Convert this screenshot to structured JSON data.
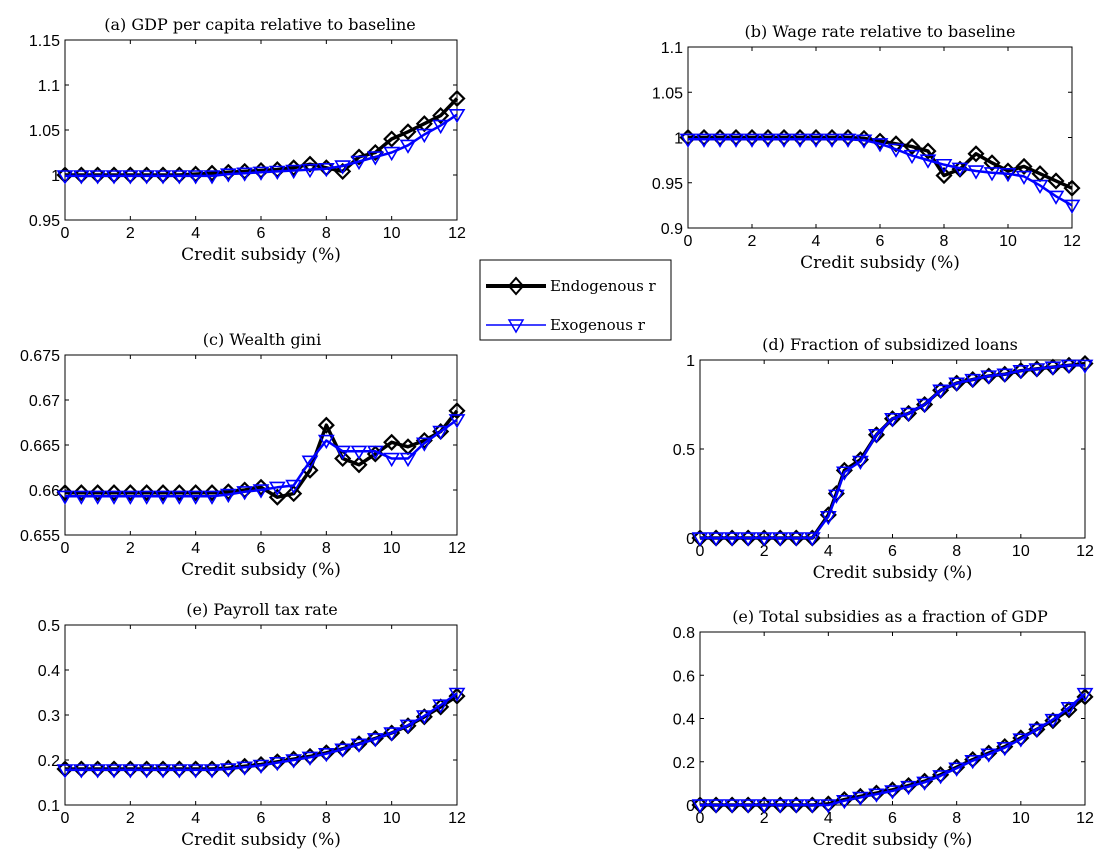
{
  "legend": {
    "entries": [
      {
        "label": "Endogenous r",
        "color": "#000000",
        "marker": "diamond"
      },
      {
        "label": "Exogenous r",
        "color": "#0000ff",
        "marker": "triangle-down"
      }
    ]
  },
  "chart_data": [
    {
      "type": "line",
      "title": "(a) GDP per capita relative to baseline",
      "xlabel": "Credit subsidy (%)",
      "ylabel": "",
      "xlim": [
        0,
        12
      ],
      "ylim": [
        0.95,
        1.15
      ],
      "xticks": [
        0,
        2,
        4,
        6,
        8,
        10,
        12
      ],
      "yticks": [
        0.95,
        1,
        1.05,
        1.1,
        1.15
      ],
      "ytick_labels": [
        "0.95",
        "1",
        "1.05",
        "1.1",
        "1.15"
      ],
      "x": [
        0,
        0.5,
        1,
        1.5,
        2,
        2.5,
        3,
        3.5,
        4,
        4.5,
        5,
        5.5,
        6,
        6.5,
        7,
        7.5,
        8,
        8.5,
        9,
        9.5,
        10,
        10.5,
        11,
        11.5,
        12
      ],
      "series": [
        {
          "name": "Endogenous r",
          "color": "#000000",
          "values": [
            1.0,
            1.0,
            1.0,
            1.0,
            1.0,
            1.0,
            1.0,
            1.0,
            1.001,
            1.002,
            1.003,
            1.004,
            1.005,
            1.006,
            1.008,
            1.012,
            1.008,
            1.004,
            1.02,
            1.025,
            1.04,
            1.048,
            1.057,
            1.066,
            1.085
          ]
        },
        {
          "name": "Exogenous r",
          "color": "#0000ff",
          "values": [
            0.999,
            0.999,
            0.999,
            0.999,
            0.999,
            0.999,
            0.999,
            0.999,
            0.999,
            0.999,
            1.001,
            1.002,
            1.003,
            1.004,
            1.005,
            1.006,
            1.007,
            1.01,
            1.015,
            1.02,
            1.025,
            1.033,
            1.045,
            1.055,
            1.067
          ]
        }
      ]
    },
    {
      "type": "line",
      "title": "(b) Wage rate relative to baseline",
      "xlabel": "Credit subsidy (%)",
      "ylabel": "",
      "xlim": [
        0,
        12
      ],
      "ylim": [
        0.9,
        1.1
      ],
      "xticks": [
        0,
        2,
        4,
        6,
        8,
        10,
        12
      ],
      "yticks": [
        0.9,
        0.95,
        1,
        1.05,
        1.1
      ],
      "ytick_labels": [
        "0.9",
        "0.95",
        "1",
        "1.05",
        "1.1"
      ],
      "x": [
        0,
        0.5,
        1,
        1.5,
        2,
        2.5,
        3,
        3.5,
        4,
        4.5,
        5,
        5.5,
        6,
        6.5,
        7,
        7.5,
        8,
        8.5,
        9,
        9.5,
        10,
        10.5,
        11,
        11.5,
        12
      ],
      "series": [
        {
          "name": "Endogenous r",
          "color": "#000000",
          "values": [
            1.0,
            1.0,
            1.0,
            1.0,
            1.0,
            1.0,
            1.0,
            1.0,
            1.0,
            1.0,
            1.0,
            0.999,
            0.996,
            0.993,
            0.99,
            0.985,
            0.958,
            0.965,
            0.982,
            0.972,
            0.963,
            0.968,
            0.96,
            0.952,
            0.944
          ]
        },
        {
          "name": "Exogenous r",
          "color": "#0000ff",
          "values": [
            0.998,
            0.998,
            0.998,
            0.998,
            0.998,
            0.998,
            0.998,
            0.998,
            0.998,
            0.998,
            0.998,
            0.997,
            0.993,
            0.987,
            0.98,
            0.975,
            0.97,
            0.966,
            0.963,
            0.961,
            0.96,
            0.957,
            0.947,
            0.935,
            0.925
          ]
        }
      ]
    },
    {
      "type": "line",
      "title": "(c) Wealth gini",
      "xlabel": "Credit subsidy (%)",
      "ylabel": "",
      "xlim": [
        0,
        12
      ],
      "ylim": [
        0.655,
        0.675
      ],
      "xticks": [
        0,
        2,
        4,
        6,
        8,
        10,
        12
      ],
      "yticks": [
        0.655,
        0.66,
        0.665,
        0.67,
        0.675
      ],
      "ytick_labels": [
        "0.655",
        "0.66",
        "0.665",
        "0.67",
        "0.675"
      ],
      "x": [
        0,
        0.5,
        1,
        1.5,
        2,
        2.5,
        3,
        3.5,
        4,
        4.5,
        5,
        5.5,
        6,
        6.5,
        7,
        7.5,
        8,
        8.5,
        9,
        9.5,
        10,
        10.5,
        11,
        11.5,
        12
      ],
      "series": [
        {
          "name": "Endogenous r",
          "color": "#000000",
          "values": [
            0.6597,
            0.6597,
            0.6597,
            0.6597,
            0.6597,
            0.6597,
            0.6597,
            0.6597,
            0.6597,
            0.6597,
            0.6598,
            0.66,
            0.6603,
            0.6592,
            0.6596,
            0.6622,
            0.6672,
            0.6635,
            0.6628,
            0.664,
            0.6653,
            0.6648,
            0.6655,
            0.6665,
            0.6688
          ]
        },
        {
          "name": "Exogenous r",
          "color": "#0000ff",
          "values": [
            0.6593,
            0.6593,
            0.6593,
            0.6593,
            0.6593,
            0.6593,
            0.6593,
            0.6593,
            0.6593,
            0.6593,
            0.6595,
            0.6598,
            0.66,
            0.6603,
            0.6605,
            0.6632,
            0.6655,
            0.6643,
            0.6643,
            0.6643,
            0.6635,
            0.6635,
            0.6652,
            0.6665,
            0.6678
          ]
        }
      ]
    },
    {
      "type": "line",
      "title": "(d) Fraction of subsidized loans",
      "xlabel": "Credit subsidy (%)",
      "ylabel": "",
      "xlim": [
        0,
        12
      ],
      "ylim": [
        0,
        1
      ],
      "xticks": [
        0,
        2,
        4,
        6,
        8,
        10,
        12
      ],
      "yticks": [
        0,
        0.5,
        1
      ],
      "ytick_labels": [
        "0",
        "0.5",
        "1"
      ],
      "x": [
        0,
        0.5,
        1,
        1.5,
        2,
        2.5,
        3,
        3.5,
        4,
        4.25,
        4.5,
        5,
        5.5,
        6,
        6.5,
        7,
        7.5,
        8,
        8.5,
        9,
        9.5,
        10,
        10.5,
        11,
        11.5,
        12
      ],
      "series": [
        {
          "name": "Endogenous r",
          "color": "#000000",
          "values": [
            0,
            0,
            0,
            0,
            0,
            0,
            0,
            0,
            0.13,
            0.25,
            0.38,
            0.44,
            0.58,
            0.67,
            0.7,
            0.75,
            0.83,
            0.87,
            0.89,
            0.91,
            0.92,
            0.94,
            0.95,
            0.96,
            0.97,
            0.98
          ]
        },
        {
          "name": "Exogenous r",
          "color": "#0000ff",
          "values": [
            0,
            0,
            0,
            0,
            0,
            0,
            0,
            0,
            0.12,
            0.24,
            0.37,
            0.43,
            0.58,
            0.67,
            0.7,
            0.75,
            0.83,
            0.87,
            0.89,
            0.91,
            0.92,
            0.94,
            0.95,
            0.96,
            0.97,
            0.97
          ]
        }
      ]
    },
    {
      "type": "line",
      "title": "(e) Payroll tax rate",
      "xlabel": "Credit subsidy (%)",
      "ylabel": "",
      "xlim": [
        0,
        12
      ],
      "ylim": [
        0.1,
        0.5
      ],
      "xticks": [
        0,
        2,
        4,
        6,
        8,
        10,
        12
      ],
      "yticks": [
        0.1,
        0.2,
        0.3,
        0.4,
        0.5
      ],
      "ytick_labels": [
        "0.1",
        "0.2",
        "0.3",
        "0.4",
        "0.5"
      ],
      "x": [
        0,
        0.5,
        1,
        1.5,
        2,
        2.5,
        3,
        3.5,
        4,
        4.5,
        5,
        5.5,
        6,
        6.5,
        7,
        7.5,
        8,
        8.5,
        9,
        9.5,
        10,
        10.5,
        11,
        11.5,
        12
      ],
      "series": [
        {
          "name": "Endogenous r",
          "color": "#000000",
          "values": [
            0.18,
            0.18,
            0.18,
            0.18,
            0.18,
            0.18,
            0.18,
            0.18,
            0.18,
            0.18,
            0.182,
            0.186,
            0.19,
            0.196,
            0.202,
            0.208,
            0.216,
            0.225,
            0.236,
            0.248,
            0.26,
            0.276,
            0.296,
            0.318,
            0.342
          ]
        },
        {
          "name": "Exogenous r",
          "color": "#0000ff",
          "values": [
            0.178,
            0.178,
            0.178,
            0.178,
            0.178,
            0.178,
            0.178,
            0.178,
            0.178,
            0.178,
            0.18,
            0.184,
            0.188,
            0.194,
            0.2,
            0.206,
            0.214,
            0.224,
            0.235,
            0.247,
            0.26,
            0.277,
            0.298,
            0.322,
            0.348
          ]
        }
      ]
    },
    {
      "type": "line",
      "title": "(e) Total subsidies as a fraction of GDP",
      "xlabel": "Credit subsidy (%)",
      "ylabel": "",
      "xlim": [
        0,
        12
      ],
      "ylim": [
        0,
        0.8
      ],
      "xticks": [
        0,
        2,
        4,
        6,
        8,
        10,
        12
      ],
      "yticks": [
        0,
        0.2,
        0.4,
        0.6,
        0.8
      ],
      "ytick_labels": [
        "0",
        "0.2",
        "0.4",
        "0.6",
        "0.8"
      ],
      "x": [
        0,
        0.5,
        1,
        1.5,
        2,
        2.5,
        3,
        3.5,
        4,
        4.5,
        5,
        5.5,
        6,
        6.5,
        7,
        7.5,
        8,
        8.5,
        9,
        9.5,
        10,
        10.5,
        11,
        11.5,
        12
      ],
      "series": [
        {
          "name": "Endogenous r",
          "color": "#000000",
          "values": [
            0,
            0,
            0,
            0,
            0,
            0,
            0,
            0,
            0.005,
            0.025,
            0.04,
            0.055,
            0.07,
            0.09,
            0.11,
            0.14,
            0.175,
            0.21,
            0.24,
            0.27,
            0.31,
            0.35,
            0.39,
            0.44,
            0.5
          ]
        },
        {
          "name": "Exogenous r",
          "color": "#0000ff",
          "values": [
            0,
            0,
            0,
            0,
            0,
            0,
            0,
            0,
            0,
            0.02,
            0.035,
            0.05,
            0.065,
            0.085,
            0.105,
            0.135,
            0.17,
            0.205,
            0.235,
            0.265,
            0.305,
            0.35,
            0.395,
            0.45,
            0.515
          ]
        }
      ]
    }
  ]
}
